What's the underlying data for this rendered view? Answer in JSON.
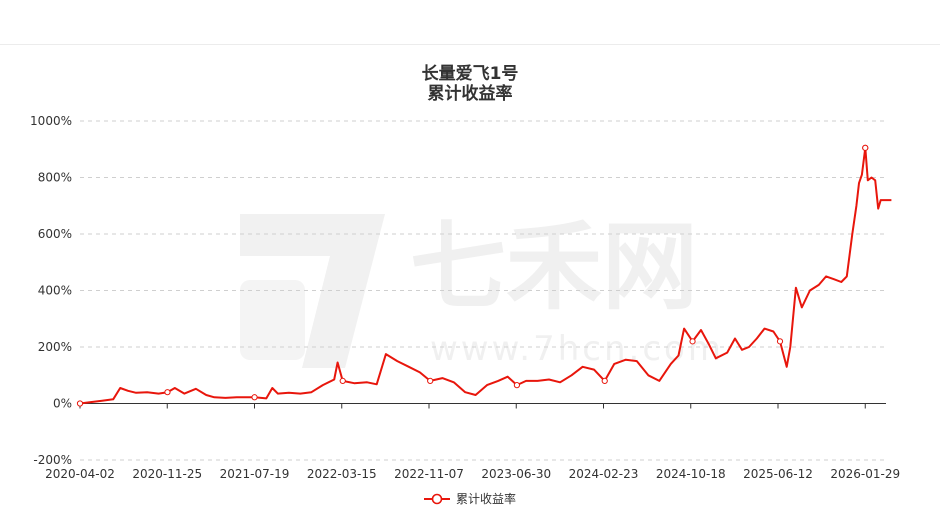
{
  "chart_data": {
    "type": "line",
    "title": "长量爱飞1号",
    "subtitle": "累计收益率",
    "legend": {
      "position": "bottom",
      "label": "累计收益率"
    },
    "color": "#e8160c",
    "watermark": {
      "brand": "七禾网",
      "url": "www.7hcn.com"
    },
    "y_axis": {
      "min": -200,
      "max": 1000,
      "ticks": [
        "-200%",
        "0%",
        "200%",
        "400%",
        "600%",
        "800%",
        "1000%"
      ],
      "grid": true
    },
    "x_axis": {
      "ticks": [
        "2020-04-02",
        "2020-11-25",
        "2021-07-19",
        "2022-03-15",
        "2022-11-07",
        "2023-06-30",
        "2024-02-23",
        "2024-10-18",
        "2025-06-12",
        "2026-01-29"
      ]
    },
    "series": [
      {
        "name": "累计收益率",
        "points": [
          [
            "2020-04-02",
            0
          ],
          [
            "2020-05-01",
            5
          ],
          [
            "2020-06-01",
            10
          ],
          [
            "2020-07-01",
            15
          ],
          [
            "2020-07-20",
            55
          ],
          [
            "2020-08-10",
            45
          ],
          [
            "2020-09-01",
            38
          ],
          [
            "2020-10-01",
            40
          ],
          [
            "2020-11-01",
            35
          ],
          [
            "2020-11-25",
            40
          ],
          [
            "2020-12-15",
            55
          ],
          [
            "2021-01-10",
            35
          ],
          [
            "2021-02-10",
            52
          ],
          [
            "2021-03-10",
            30
          ],
          [
            "2021-04-01",
            22
          ],
          [
            "2021-05-01",
            20
          ],
          [
            "2021-06-01",
            22
          ],
          [
            "2021-07-19",
            22
          ],
          [
            "2021-08-20",
            18
          ],
          [
            "2021-09-05",
            55
          ],
          [
            "2021-09-20",
            35
          ],
          [
            "2021-10-20",
            38
          ],
          [
            "2021-11-20",
            35
          ],
          [
            "2021-12-20",
            40
          ],
          [
            "2022-01-20",
            65
          ],
          [
            "2022-02-20",
            85
          ],
          [
            "2022-03-01",
            145
          ],
          [
            "2022-03-15",
            80
          ],
          [
            "2022-04-15",
            72
          ],
          [
            "2022-05-20",
            75
          ],
          [
            "2022-06-15",
            68
          ],
          [
            "2022-07-10",
            175
          ],
          [
            "2022-08-10",
            150
          ],
          [
            "2022-09-10",
            130
          ],
          [
            "2022-10-10",
            110
          ],
          [
            "2022-11-07",
            80
          ],
          [
            "2022-12-10",
            90
          ],
          [
            "2023-01-10",
            75
          ],
          [
            "2023-02-10",
            40
          ],
          [
            "2023-03-10",
            30
          ],
          [
            "2023-04-10",
            65
          ],
          [
            "2023-05-10",
            80
          ],
          [
            "2023-06-05",
            95
          ],
          [
            "2023-06-30",
            65
          ],
          [
            "2023-07-25",
            80
          ],
          [
            "2023-08-25",
            80
          ],
          [
            "2023-09-25",
            85
          ],
          [
            "2023-10-25",
            75
          ],
          [
            "2023-11-25",
            100
          ],
          [
            "2023-12-25",
            130
          ],
          [
            "2024-01-25",
            120
          ],
          [
            "2024-02-23",
            80
          ],
          [
            "2024-03-20",
            140
          ],
          [
            "2024-04-20",
            155
          ],
          [
            "2024-05-20",
            150
          ],
          [
            "2024-06-20",
            100
          ],
          [
            "2024-07-20",
            80
          ],
          [
            "2024-08-20",
            140
          ],
          [
            "2024-09-10",
            170
          ],
          [
            "2024-09-25",
            265
          ],
          [
            "2024-10-18",
            220
          ],
          [
            "2024-11-10",
            260
          ],
          [
            "2024-12-01",
            210
          ],
          [
            "2024-12-20",
            160
          ],
          [
            "2025-01-20",
            180
          ],
          [
            "2025-02-10",
            230
          ],
          [
            "2025-03-01",
            190
          ],
          [
            "2025-03-20",
            200
          ],
          [
            "2025-04-10",
            230
          ],
          [
            "2025-05-01",
            265
          ],
          [
            "2025-05-25",
            255
          ],
          [
            "2025-06-12",
            220
          ],
          [
            "2025-06-30",
            130
          ],
          [
            "2025-07-10",
            200
          ],
          [
            "2025-07-25",
            410
          ],
          [
            "2025-08-10",
            340
          ],
          [
            "2025-09-01",
            400
          ],
          [
            "2025-09-25",
            420
          ],
          [
            "2025-10-15",
            450
          ],
          [
            "2025-11-05",
            440
          ],
          [
            "2025-11-25",
            430
          ],
          [
            "2025-12-10",
            450
          ],
          [
            "2025-12-25",
            600
          ],
          [
            "2026-01-05",
            700
          ],
          [
            "2026-01-12",
            780
          ],
          [
            "2026-01-20",
            810
          ],
          [
            "2026-01-29",
            905
          ],
          [
            "2026-02-05",
            790
          ],
          [
            "2026-02-15",
            800
          ],
          [
            "2026-02-25",
            790
          ],
          [
            "2026-03-05",
            690
          ],
          [
            "2026-03-12",
            720
          ],
          [
            "2026-04-10",
            720
          ]
        ]
      }
    ]
  }
}
